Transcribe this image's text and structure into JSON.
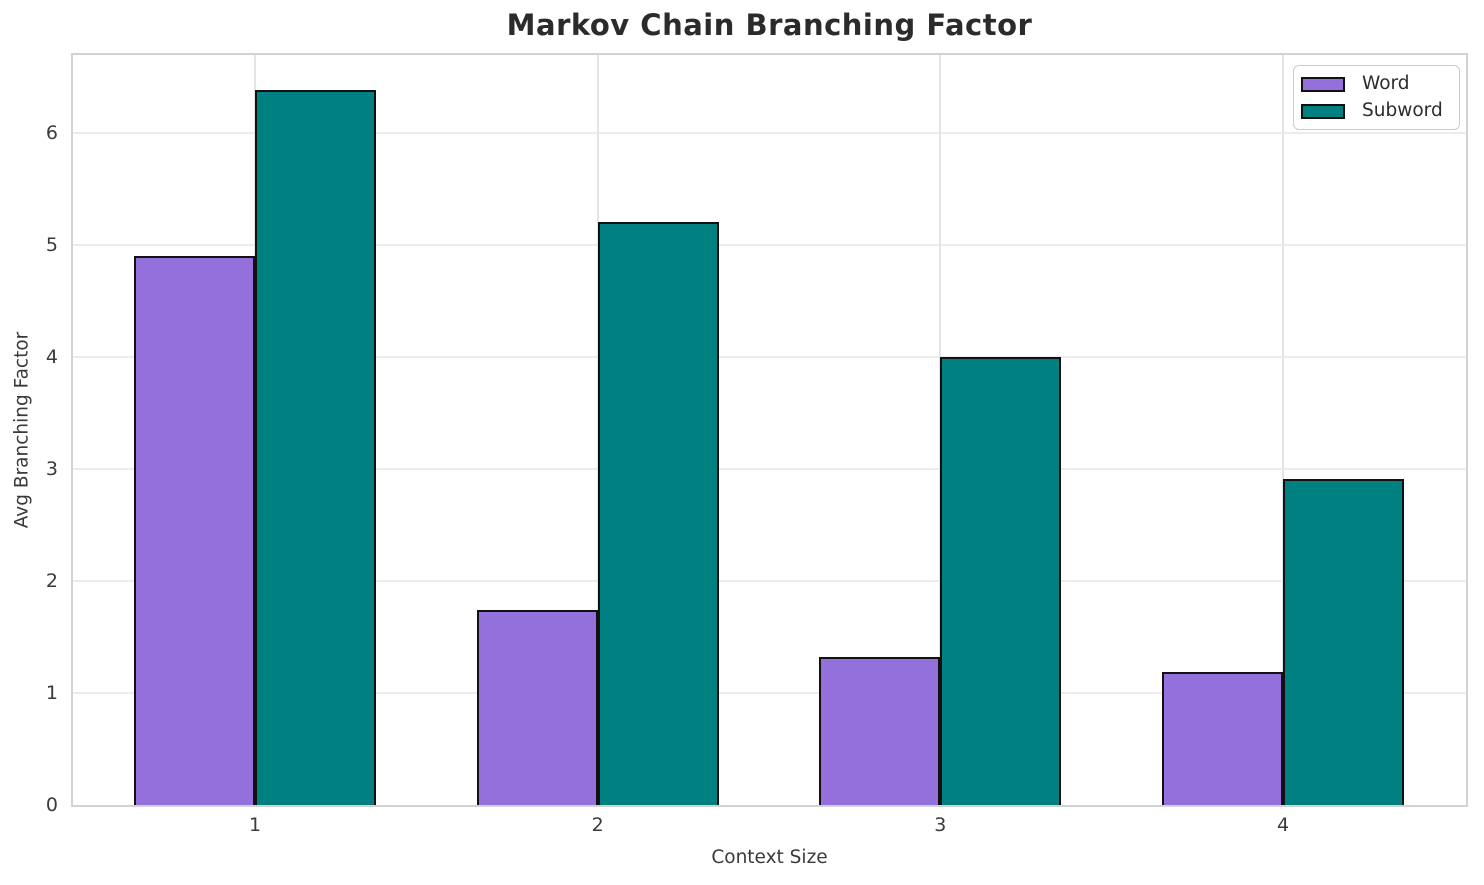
{
  "chart_data": {
    "type": "bar",
    "title": "Markov Chain Branching Factor",
    "xlabel": "Context Size",
    "ylabel": "Avg Branching Factor",
    "categories": [
      "1",
      "2",
      "3",
      "4"
    ],
    "series": [
      {
        "name": "Word",
        "color": "#9370DB",
        "values": [
          4.9,
          1.74,
          1.32,
          1.19
        ]
      },
      {
        "name": "Subword",
        "color": "#008080",
        "values": [
          6.39,
          5.21,
          4.0,
          2.91
        ]
      }
    ],
    "ylim": [
      0,
      6.7
    ],
    "yticks": [
      0,
      1,
      2,
      3,
      4,
      5,
      6
    ],
    "grid": true,
    "legend_position": "upper right",
    "bar_edge_color": "#111111"
  }
}
